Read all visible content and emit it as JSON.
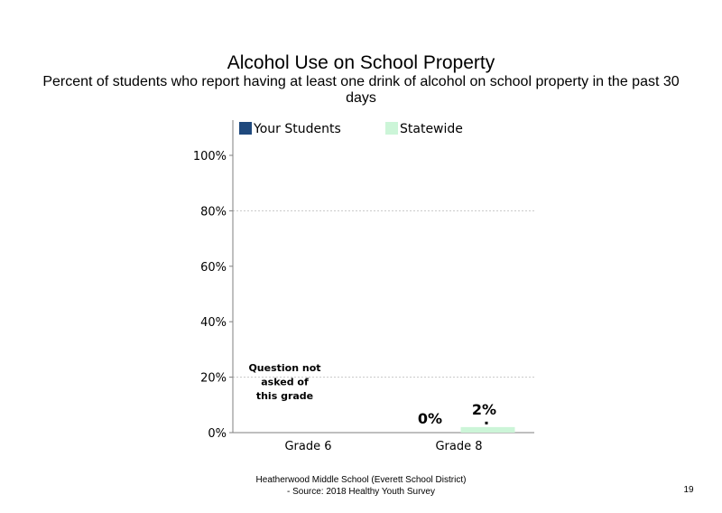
{
  "slide": {
    "title": "Alcohol Use on School Property",
    "subtitle": "Percent of students who report having at least one drink of alcohol on school property in the past 30 days",
    "footer_line1": "Heatherwood Middle School (Everett School District)",
    "footer_line2": "- Source: 2018 Healthy Youth Survey",
    "page_number": "19"
  },
  "colors": {
    "your_students": "#1f497d",
    "statewide": "#ccf5d8",
    "grid": "#c8c8c8",
    "axis": "#7f7f7f"
  },
  "chart_data": {
    "type": "bar",
    "title": "Alcohol Use on School Property",
    "categories": [
      "Grade 6",
      "Grade 8"
    ],
    "series": [
      {
        "name": "Your Students",
        "values": [
          null,
          0
        ],
        "value_labels": [
          "",
          "0%"
        ]
      },
      {
        "name": "Statewide",
        "values": [
          null,
          2
        ],
        "value_labels": [
          "",
          "2%"
        ]
      }
    ],
    "annotation": {
      "category": "Grade 6",
      "text": [
        "Question not",
        "asked of",
        "this grade"
      ]
    },
    "ylim": [
      0,
      100
    ],
    "yticks": [
      0,
      20,
      40,
      60,
      80,
      100
    ],
    "ytick_labels": [
      "0%",
      "20%",
      "40%",
      "60%",
      "80%",
      "100%"
    ],
    "xlabel": "",
    "ylabel": "",
    "grid": true,
    "legend": "top"
  }
}
